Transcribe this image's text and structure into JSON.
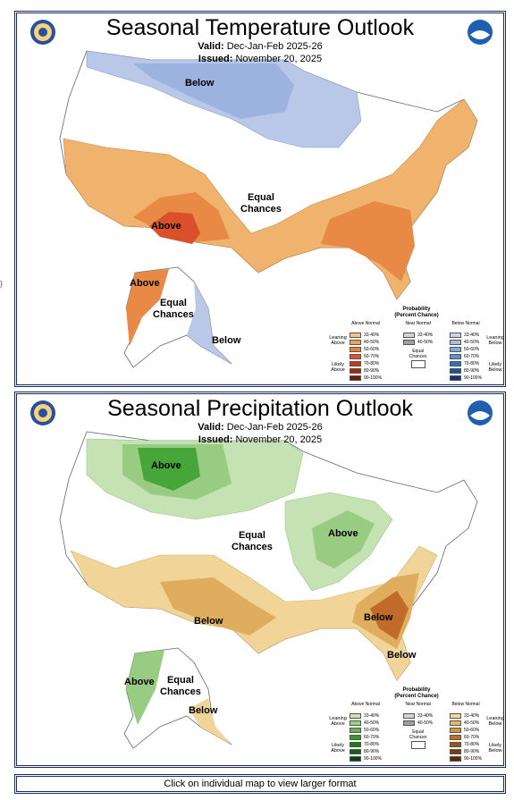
{
  "temperature": {
    "title": "Seasonal Temperature Outlook",
    "valid_label": "Valid:",
    "valid_value": "Dec-Jan-Feb 2025-26",
    "issued_label": "Issued:",
    "issued_value": "November 20, 2025",
    "regions": {
      "below": "Below",
      "equal_l1": "Equal",
      "equal_l2": "Chances",
      "above": "Above",
      "ak_above": "Above",
      "ak_equal_l1": "Equal",
      "ak_equal_l2": "Chances",
      "ak_below": "Below"
    },
    "legend": {
      "title_l1": "Probability",
      "title_l2": "(Percent Chance)",
      "col_left_head": "Above Normal",
      "col_mid_head": "Near Normal",
      "col_right_head": "Below Normal",
      "left_side_top": "Leaning Above",
      "left_side_bottom": "Likely Above",
      "right_side_top": "Leaning Below",
      "right_side_bottom": "Likely Below",
      "equal_l1": "Equal",
      "equal_l2": "Chances",
      "ranges": [
        "33-40%",
        "40-50%",
        "50-60%",
        "60-70%",
        "70-80%",
        "80-90%",
        "90-100%"
      ],
      "near_ranges": [
        "33-40%",
        "40-50%"
      ],
      "left_colors": [
        "#f4c28a",
        "#eda456",
        "#e8823a",
        "#d9562a",
        "#c33b1c",
        "#9b2812",
        "#6d1c0a"
      ],
      "right_colors": [
        "#c6d4ec",
        "#a8bde2",
        "#86a7da",
        "#5d90d2",
        "#3a6fb8",
        "#254f94",
        "#1c2f6e"
      ],
      "near_colors": [
        "#d3d3d3",
        "#a0a0a0"
      ]
    },
    "colors": {
      "above_low": "#efb36e",
      "above_mid": "#e88a45",
      "above_high": "#d9502a",
      "below_low": "#b9c8e8",
      "below_mid": "#9bb3de"
    }
  },
  "precipitation": {
    "title": "Seasonal Precipitation Outlook",
    "valid_label": "Valid:",
    "valid_value": "Dec-Jan-Feb 2025-26",
    "issued_label": "Issued:",
    "issued_value": "November 20, 2025",
    "regions": {
      "above_nw": "Above",
      "equal_l1": "Equal",
      "equal_l2": "Chances",
      "above_ov": "Above",
      "below_sw": "Below",
      "below_se": "Below",
      "below_fl": "Below",
      "ak_above": "Above",
      "ak_equal_l1": "Equal",
      "ak_equal_l2": "Chances",
      "ak_below": "Below"
    },
    "legend": {
      "title_l1": "Probability",
      "title_l2": "(Percent Chance)",
      "col_left_head": "Above Normal",
      "col_mid_head": "Near Normal",
      "col_right_head": "Below Normal",
      "left_side_top": "Leaning Above",
      "left_side_bottom": "Likely Above",
      "right_side_top": "Leaning Below",
      "right_side_bottom": "Likely Below",
      "equal_l1": "Equal",
      "equal_l2": "Chances",
      "ranges": [
        "33-40%",
        "40-50%",
        "50-60%",
        "60-70%",
        "70-80%",
        "80-90%",
        "90-100%"
      ],
      "near_ranges": [
        "33-40%",
        "40-50%"
      ],
      "left_colors": [
        "#c5e3b5",
        "#98cf85",
        "#5fb64e",
        "#349a2c",
        "#1f7a1c",
        "#175d14",
        "#0f3f0c"
      ],
      "right_colors": [
        "#f1d9a0",
        "#e5b868",
        "#d39442",
        "#bf6f2a",
        "#a2521c",
        "#7c3a12",
        "#57280b"
      ],
      "near_colors": [
        "#d3d3d3",
        "#a0a0a0"
      ]
    },
    "colors": {
      "above_low": "#c4e2b2",
      "above_mid": "#97cc82",
      "above_high": "#46a63a",
      "below_low": "#f1d598",
      "below_mid": "#e0ad5e",
      "below_high": "#c06b2a"
    }
  },
  "footer": {
    "text": "Click on individual map to view larger format"
  },
  "margin_marks": [
    "}"
  ]
}
